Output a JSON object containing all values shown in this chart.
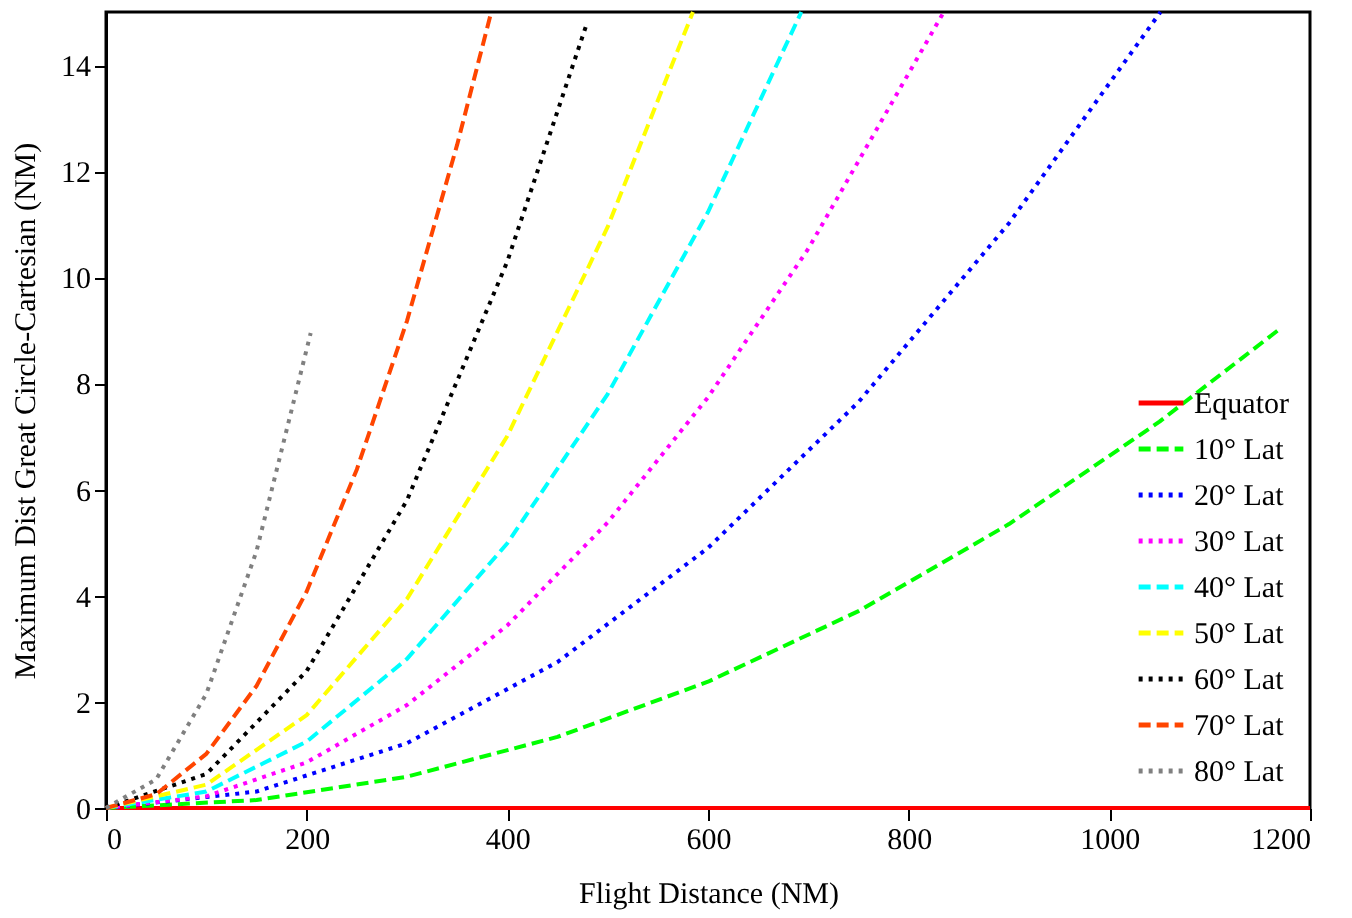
{
  "chart_data": {
    "type": "line",
    "xlabel": "Flight Distance (NM)",
    "ylabel": "Maximum Dist Great Circle-Cartesian (NM)",
    "xlim": [
      0,
      1200
    ],
    "ylim": [
      0,
      15
    ],
    "xticks": [
      0,
      200,
      400,
      600,
      800,
      1000,
      1200
    ],
    "yticks": [
      0,
      2,
      4,
      6,
      8,
      10,
      12,
      14
    ],
    "grid": false,
    "legend": "bottom right",
    "marker": "none",
    "series": [
      {
        "name": "Equator",
        "color": "#ff0000",
        "line_style": "solid",
        "x": [
          0,
          1200
        ],
        "values": [
          0,
          0
        ]
      },
      {
        "name": "10° Lat",
        "color": "#00ff00",
        "line_style": "dashed",
        "x": [
          0,
          150,
          300,
          450,
          600,
          750,
          900,
          1050,
          1170
        ],
        "values": [
          0,
          0.15,
          0.59,
          1.34,
          2.38,
          3.71,
          5.35,
          7.28,
          9.03
        ]
      },
      {
        "name": "20° Lat",
        "color": "#0000ff",
        "line_style": "dotted",
        "x": [
          0,
          150,
          300,
          450,
          600,
          750,
          900,
          1051
        ],
        "values": [
          0,
          0.31,
          1.22,
          2.75,
          4.9,
          7.65,
          11.02,
          15
        ]
      },
      {
        "name": "30° Lat",
        "color": "#ff00ff",
        "line_style": "dotted",
        "x": [
          0,
          100,
          200,
          300,
          400,
          500,
          600,
          700,
          835
        ],
        "values": [
          0,
          0.22,
          0.86,
          1.94,
          3.44,
          5.38,
          7.74,
          10.54,
          15
        ]
      },
      {
        "name": "40° Lat",
        "color": "#00ffff",
        "line_style": "dashed",
        "x": [
          0,
          100,
          200,
          300,
          400,
          500,
          600,
          693
        ],
        "values": [
          0,
          0.31,
          1.25,
          2.81,
          4.99,
          7.8,
          11.23,
          15
        ]
      },
      {
        "name": "50° Lat",
        "color": "#ffff00",
        "line_style": "dashed",
        "x": [
          0,
          100,
          200,
          300,
          400,
          500,
          585
        ],
        "values": [
          0,
          0.44,
          1.75,
          3.94,
          7.01,
          10.95,
          15
        ]
      },
      {
        "name": "60° Lat",
        "color": "#000000",
        "line_style": "dotted",
        "x": [
          0,
          100,
          200,
          300,
          400,
          479
        ],
        "values": [
          0,
          0.64,
          2.58,
          5.8,
          10.3,
          14.77
        ]
      },
      {
        "name": "70° Lat",
        "color": "#ff4500",
        "line_style": "dashed",
        "x": [
          0,
          50,
          100,
          150,
          200,
          250,
          300,
          350,
          384
        ],
        "values": [
          0,
          0.26,
          1.02,
          2.3,
          4.08,
          6.38,
          9.18,
          12.5,
          15
        ]
      },
      {
        "name": "80° Lat",
        "color": "#808080",
        "line_style": "dotted",
        "x": [
          0,
          50,
          100,
          150,
          204
        ],
        "values": [
          0,
          0.54,
          2.15,
          4.84,
          8.95
        ]
      }
    ]
  }
}
